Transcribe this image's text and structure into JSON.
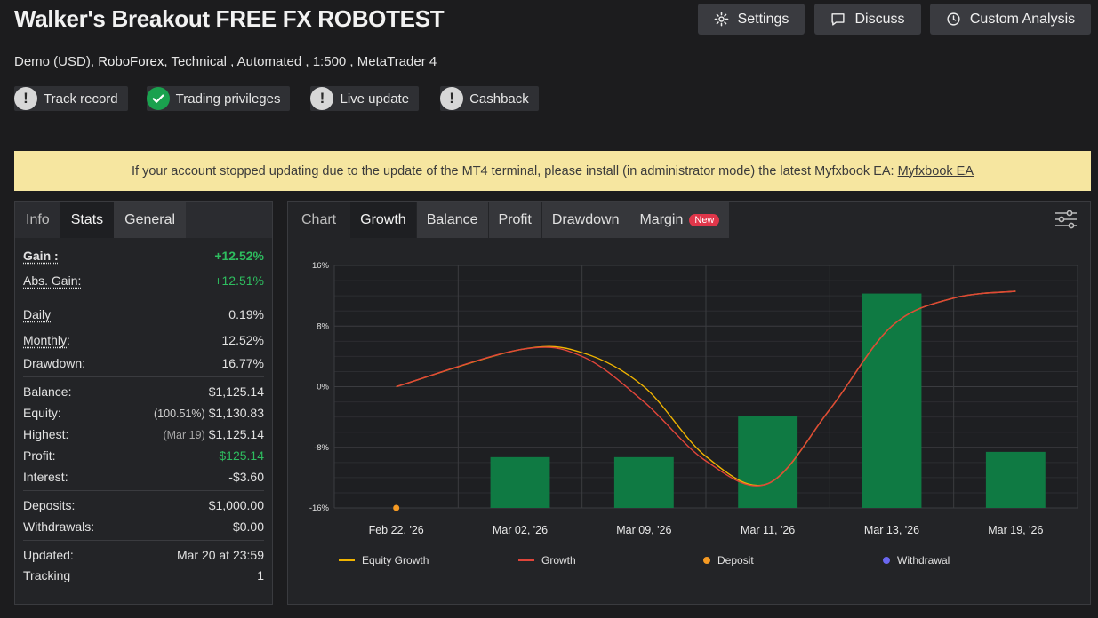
{
  "header": {
    "title": "Walker's Breakout FREE FX ROBOTEST",
    "sub_prefix": "Demo (USD),",
    "broker": "RoboForex",
    "sub_suffix": ", Technical , Automated , 1:500 , MetaTrader 4"
  },
  "top_buttons": {
    "settings": "Settings",
    "discuss": "Discuss",
    "custom_analysis": "Custom Analysis"
  },
  "badges": [
    {
      "label": "Track record",
      "state": "warning"
    },
    {
      "label": "Trading privileges",
      "state": "verified"
    },
    {
      "label": "Live update",
      "state": "warning"
    },
    {
      "label": "Cashback",
      "state": "warning"
    }
  ],
  "notice": {
    "text": "If your account stopped updating due to the update of the MT4 terminal, please install (in administrator mode) the latest Myfxbook EA:",
    "link": "Myfxbook EA"
  },
  "left_tabs": [
    "Info",
    "Stats",
    "General"
  ],
  "stats": {
    "gain_label": "Gain :",
    "gain": "+12.52%",
    "abs_gain_label": "Abs. Gain:",
    "abs_gain": "+12.51%",
    "daily_label": "Daily",
    "daily": "0.19%",
    "monthly_label": "Monthly:",
    "monthly": "12.52%",
    "drawdown_label": "Drawdown:",
    "drawdown": "16.77%",
    "balance_label": "Balance:",
    "balance": "$1,125.14",
    "equity_label": "Equity:",
    "equity_pct": "(100.51%)",
    "equity": "$1,130.83",
    "highest_label": "Highest:",
    "highest_date": "(Mar 19)",
    "highest": "$1,125.14",
    "profit_label": "Profit:",
    "profit": "$125.14",
    "interest_label": "Interest:",
    "interest": "-$3.60",
    "deposits_label": "Deposits:",
    "deposits": "$1,000.00",
    "withdrawals_label": "Withdrawals:",
    "withdrawals": "$0.00",
    "updated_label": "Updated:",
    "updated": "Mar 20 at 23:59",
    "tracking_label": "Tracking",
    "tracking": "1"
  },
  "chart_tabs": {
    "chart": "Chart",
    "growth": "Growth",
    "balance": "Balance",
    "profit": "Profit",
    "drawdown": "Drawdown",
    "margin": "Margin",
    "new_badge": "New"
  },
  "colors": {
    "equity_growth": "#f0b400",
    "growth": "#e0453a",
    "bar": "#0f7a43",
    "deposit": "#f59a23",
    "withdrawal": "#6a67f0"
  },
  "chart_data": {
    "type": "bar+line",
    "categories": [
      "Feb 22, '26",
      "Mar 02, '26",
      "Mar 09, '26",
      "Mar 11, '26",
      "Mar 13, '26",
      "Mar 19, '26"
    ],
    "y_ticks": [
      "16%",
      "8%",
      "0%",
      "-8%",
      "-16%"
    ],
    "ylim": [
      -16,
      16
    ],
    "bars": [
      null,
      -9.3,
      -9.3,
      -3.9,
      12.3,
      -8.6
    ],
    "series": [
      {
        "name": "Equity Growth",
        "x": [
          0,
          1,
          1.5,
          2,
          2.5,
          3,
          3.5,
          4,
          4.5,
          5
        ],
        "values": [
          0,
          4.9,
          4.5,
          0,
          -9.2,
          -12.8,
          -3.0,
          8.0,
          11.7,
          12.6
        ]
      },
      {
        "name": "Growth",
        "x": [
          0,
          1,
          1.5,
          2,
          2.5,
          3,
          3.5,
          4,
          4.5,
          5
        ],
        "values": [
          0,
          4.9,
          4.0,
          -2.0,
          -9.8,
          -12.8,
          -3.0,
          8.0,
          11.7,
          12.6
        ]
      }
    ],
    "deposit_points": [
      {
        "x": 0,
        "y": -16
      }
    ],
    "legend": [
      "Equity Growth",
      "Growth",
      "Deposit",
      "Withdrawal"
    ],
    "legend_position": "bottom",
    "grid": true
  }
}
